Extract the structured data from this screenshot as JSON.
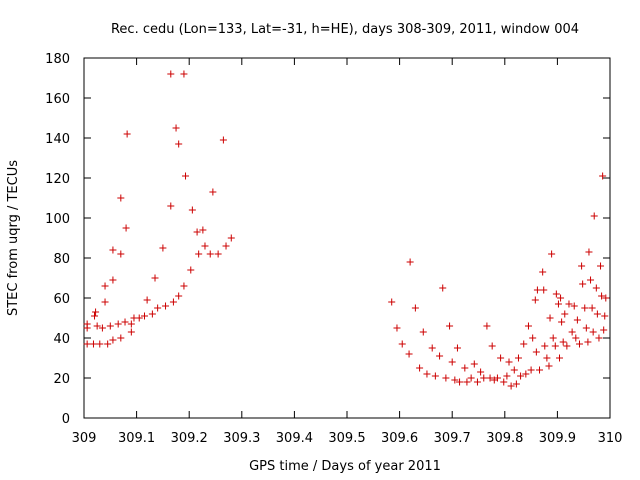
{
  "chart_data": {
    "type": "scatter",
    "title": "Rec. cedu (Lon=133, Lat=-31, h=HE), days 308-309, 2011, window 004",
    "xlabel": "GPS time / Days of year 2011",
    "ylabel": "STEC from uqrg / TECUs",
    "xlim": [
      309,
      310
    ],
    "ylim": [
      0,
      180
    ],
    "xticks": [
      "309",
      "309.1",
      "309.2",
      "309.3",
      "309.4",
      "309.5",
      "309.6",
      "309.7",
      "309.8",
      "309.9",
      "310"
    ],
    "yticks": [
      "0",
      "20",
      "40",
      "60",
      "80",
      "100",
      "120",
      "140",
      "160",
      "180"
    ],
    "grid": false,
    "marker": "+",
    "marker_color": "#cc0000",
    "points": [
      [
        309.006,
        37
      ],
      [
        309.006,
        45
      ],
      [
        309.006,
        47
      ],
      [
        309.018,
        37
      ],
      [
        309.02,
        51
      ],
      [
        309.022,
        53
      ],
      [
        309.025,
        46
      ],
      [
        309.03,
        37
      ],
      [
        309.035,
        45
      ],
      [
        309.04,
        58
      ],
      [
        309.04,
        66
      ],
      [
        309.045,
        37
      ],
      [
        309.05,
        46
      ],
      [
        309.055,
        69
      ],
      [
        309.055,
        84
      ],
      [
        309.055,
        39
      ],
      [
        309.065,
        47
      ],
      [
        309.07,
        40
      ],
      [
        309.07,
        82
      ],
      [
        309.07,
        110
      ],
      [
        309.078,
        48
      ],
      [
        309.08,
        95
      ],
      [
        309.082,
        142
      ],
      [
        309.09,
        43
      ],
      [
        309.09,
        47
      ],
      [
        309.095,
        50
      ],
      [
        309.105,
        50
      ],
      [
        309.115,
        51
      ],
      [
        309.12,
        59
      ],
      [
        309.13,
        52
      ],
      [
        309.135,
        70
      ],
      [
        309.14,
        55
      ],
      [
        309.15,
        85
      ],
      [
        309.155,
        56
      ],
      [
        309.165,
        106
      ],
      [
        309.165,
        172
      ],
      [
        309.17,
        58
      ],
      [
        309.175,
        145
      ],
      [
        309.18,
        137
      ],
      [
        309.18,
        61
      ],
      [
        309.19,
        172
      ],
      [
        309.19,
        66
      ],
      [
        309.193,
        121
      ],
      [
        309.203,
        74
      ],
      [
        309.206,
        104
      ],
      [
        309.215,
        93
      ],
      [
        309.218,
        82
      ],
      [
        309.226,
        94
      ],
      [
        309.23,
        86
      ],
      [
        309.24,
        82
      ],
      [
        309.245,
        113
      ],
      [
        309.255,
        82
      ],
      [
        309.265,
        139
      ],
      [
        309.27,
        86
      ],
      [
        309.28,
        90
      ],
      [
        309.585,
        58
      ],
      [
        309.595,
        45
      ],
      [
        309.605,
        37
      ],
      [
        309.618,
        32
      ],
      [
        309.62,
        78
      ],
      [
        309.63,
        55
      ],
      [
        309.638,
        25
      ],
      [
        309.645,
        43
      ],
      [
        309.652,
        22
      ],
      [
        309.662,
        35
      ],
      [
        309.668,
        21
      ],
      [
        309.676,
        31
      ],
      [
        309.682,
        65
      ],
      [
        309.688,
        20
      ],
      [
        309.695,
        46
      ],
      [
        309.7,
        28
      ],
      [
        309.705,
        19
      ],
      [
        309.71,
        35
      ],
      [
        309.714,
        18
      ],
      [
        309.724,
        25
      ],
      [
        309.728,
        18
      ],
      [
        309.736,
        20
      ],
      [
        309.742,
        27
      ],
      [
        309.748,
        18
      ],
      [
        309.754,
        23
      ],
      [
        309.76,
        20
      ],
      [
        309.766,
        46
      ],
      [
        309.772,
        20
      ],
      [
        309.776,
        36
      ],
      [
        309.78,
        19
      ],
      [
        309.786,
        20
      ],
      [
        309.792,
        30
      ],
      [
        309.798,
        18
      ],
      [
        309.804,
        21
      ],
      [
        309.808,
        28
      ],
      [
        309.812,
        16
      ],
      [
        309.818,
        24
      ],
      [
        309.822,
        17
      ],
      [
        309.826,
        30
      ],
      [
        309.83,
        21
      ],
      [
        309.836,
        37
      ],
      [
        309.84,
        22
      ],
      [
        309.845,
        46
      ],
      [
        309.85,
        24
      ],
      [
        309.853,
        40
      ],
      [
        309.858,
        59
      ],
      [
        309.86,
        33
      ],
      [
        309.862,
        64
      ],
      [
        309.866,
        24
      ],
      [
        309.872,
        73
      ],
      [
        309.874,
        64
      ],
      [
        309.876,
        36
      ],
      [
        309.88,
        30
      ],
      [
        309.884,
        26
      ],
      [
        309.886,
        50
      ],
      [
        309.889,
        82
      ],
      [
        309.892,
        40
      ],
      [
        309.896,
        36
      ],
      [
        309.898,
        62
      ],
      [
        309.902,
        57
      ],
      [
        309.904,
        30
      ],
      [
        309.906,
        60
      ],
      [
        309.908,
        48
      ],
      [
        309.911,
        38
      ],
      [
        309.914,
        52
      ],
      [
        309.918,
        36
      ],
      [
        309.922,
        57
      ],
      [
        309.928,
        43
      ],
      [
        309.932,
        56
      ],
      [
        309.935,
        40
      ],
      [
        309.938,
        49
      ],
      [
        309.942,
        37
      ],
      [
        309.946,
        76
      ],
      [
        309.948,
        67
      ],
      [
        309.952,
        55
      ],
      [
        309.955,
        45
      ],
      [
        309.958,
        38
      ],
      [
        309.96,
        83
      ],
      [
        309.963,
        69
      ],
      [
        309.966,
        55
      ],
      [
        309.968,
        43
      ],
      [
        309.97,
        101
      ],
      [
        309.974,
        65
      ],
      [
        309.976,
        52
      ],
      [
        309.979,
        40
      ],
      [
        309.982,
        76
      ],
      [
        309.984,
        61
      ],
      [
        309.986,
        121
      ],
      [
        309.988,
        44
      ],
      [
        309.99,
        51
      ],
      [
        309.992,
        60
      ]
    ]
  }
}
